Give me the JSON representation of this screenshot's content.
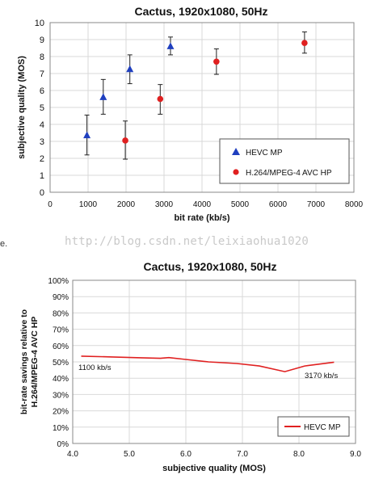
{
  "chart_data": [
    {
      "type": "scatter",
      "title": "Cactus, 1920x1080, 50Hz",
      "xlabel": "bit rate (kb/s)",
      "ylabel": "subjective quality (MOS)",
      "xlim": [
        0,
        8000
      ],
      "ylim": [
        0,
        10
      ],
      "xticks": [
        0,
        1000,
        2000,
        3000,
        4000,
        5000,
        6000,
        7000,
        8000
      ],
      "yticks": [
        0,
        1,
        2,
        3,
        4,
        5,
        6,
        7,
        8,
        9,
        10
      ],
      "grid": true,
      "legend_position": "lower-right",
      "series": [
        {
          "name": "HEVC MP",
          "marker": "triangle",
          "color": "#1f3fbf",
          "points": [
            {
              "x": 970,
              "y": 3.35,
              "low": 2.2,
              "high": 4.55
            },
            {
              "x": 1400,
              "y": 5.6,
              "low": 4.6,
              "high": 6.65
            },
            {
              "x": 2100,
              "y": 7.25,
              "low": 6.4,
              "high": 8.1
            },
            {
              "x": 3170,
              "y": 8.6,
              "low": 8.1,
              "high": 9.15
            }
          ]
        },
        {
          "name": "H.264/MPEG-4 AVC HP",
          "marker": "circle",
          "color": "#e02020",
          "points": [
            {
              "x": 1980,
              "y": 3.05,
              "low": 1.95,
              "high": 4.2
            },
            {
              "x": 2900,
              "y": 5.5,
              "low": 4.6,
              "high": 6.35
            },
            {
              "x": 4380,
              "y": 7.7,
              "low": 6.95,
              "high": 8.45
            },
            {
              "x": 6700,
              "y": 8.8,
              "low": 8.2,
              "high": 9.45
            }
          ]
        }
      ]
    },
    {
      "type": "line",
      "title": "Cactus, 1920x1080, 50Hz",
      "xlabel": "subjective quality (MOS)",
      "ylabel": [
        "bit-rate savings relative to",
        "H.264/MPEG-4 AVC HP"
      ],
      "xlim": [
        4.0,
        9.0
      ],
      "ylim": [
        0,
        100
      ],
      "xticks": [
        "4.0",
        "5.0",
        "6.0",
        "7.0",
        "8.0",
        "9.0"
      ],
      "yticks": [
        "0%",
        "10%",
        "20%",
        "30%",
        "40%",
        "50%",
        "60%",
        "70%",
        "80%",
        "90%",
        "100%"
      ],
      "grid": true,
      "legend_position": "lower-right",
      "series": [
        {
          "name": "HEVC MP",
          "color": "#e02020",
          "x": [
            4.15,
            4.7,
            5.2,
            5.55,
            5.7,
            6.0,
            6.4,
            6.9,
            7.3,
            7.75,
            8.1,
            8.62
          ],
          "y": [
            53.5,
            53.0,
            52.5,
            52.2,
            52.6,
            51.5,
            50.0,
            49.0,
            47.5,
            44.0,
            47.5,
            49.8
          ]
        }
      ],
      "annotations": [
        {
          "text": "1100 kb/s",
          "x": 4.1,
          "y": 45
        },
        {
          "text": "3170 kb/s",
          "x": 8.1,
          "y": 40
        }
      ]
    }
  ],
  "watermark": "http://blog.csdn.net/leixiaohua1020",
  "fragment": "e."
}
